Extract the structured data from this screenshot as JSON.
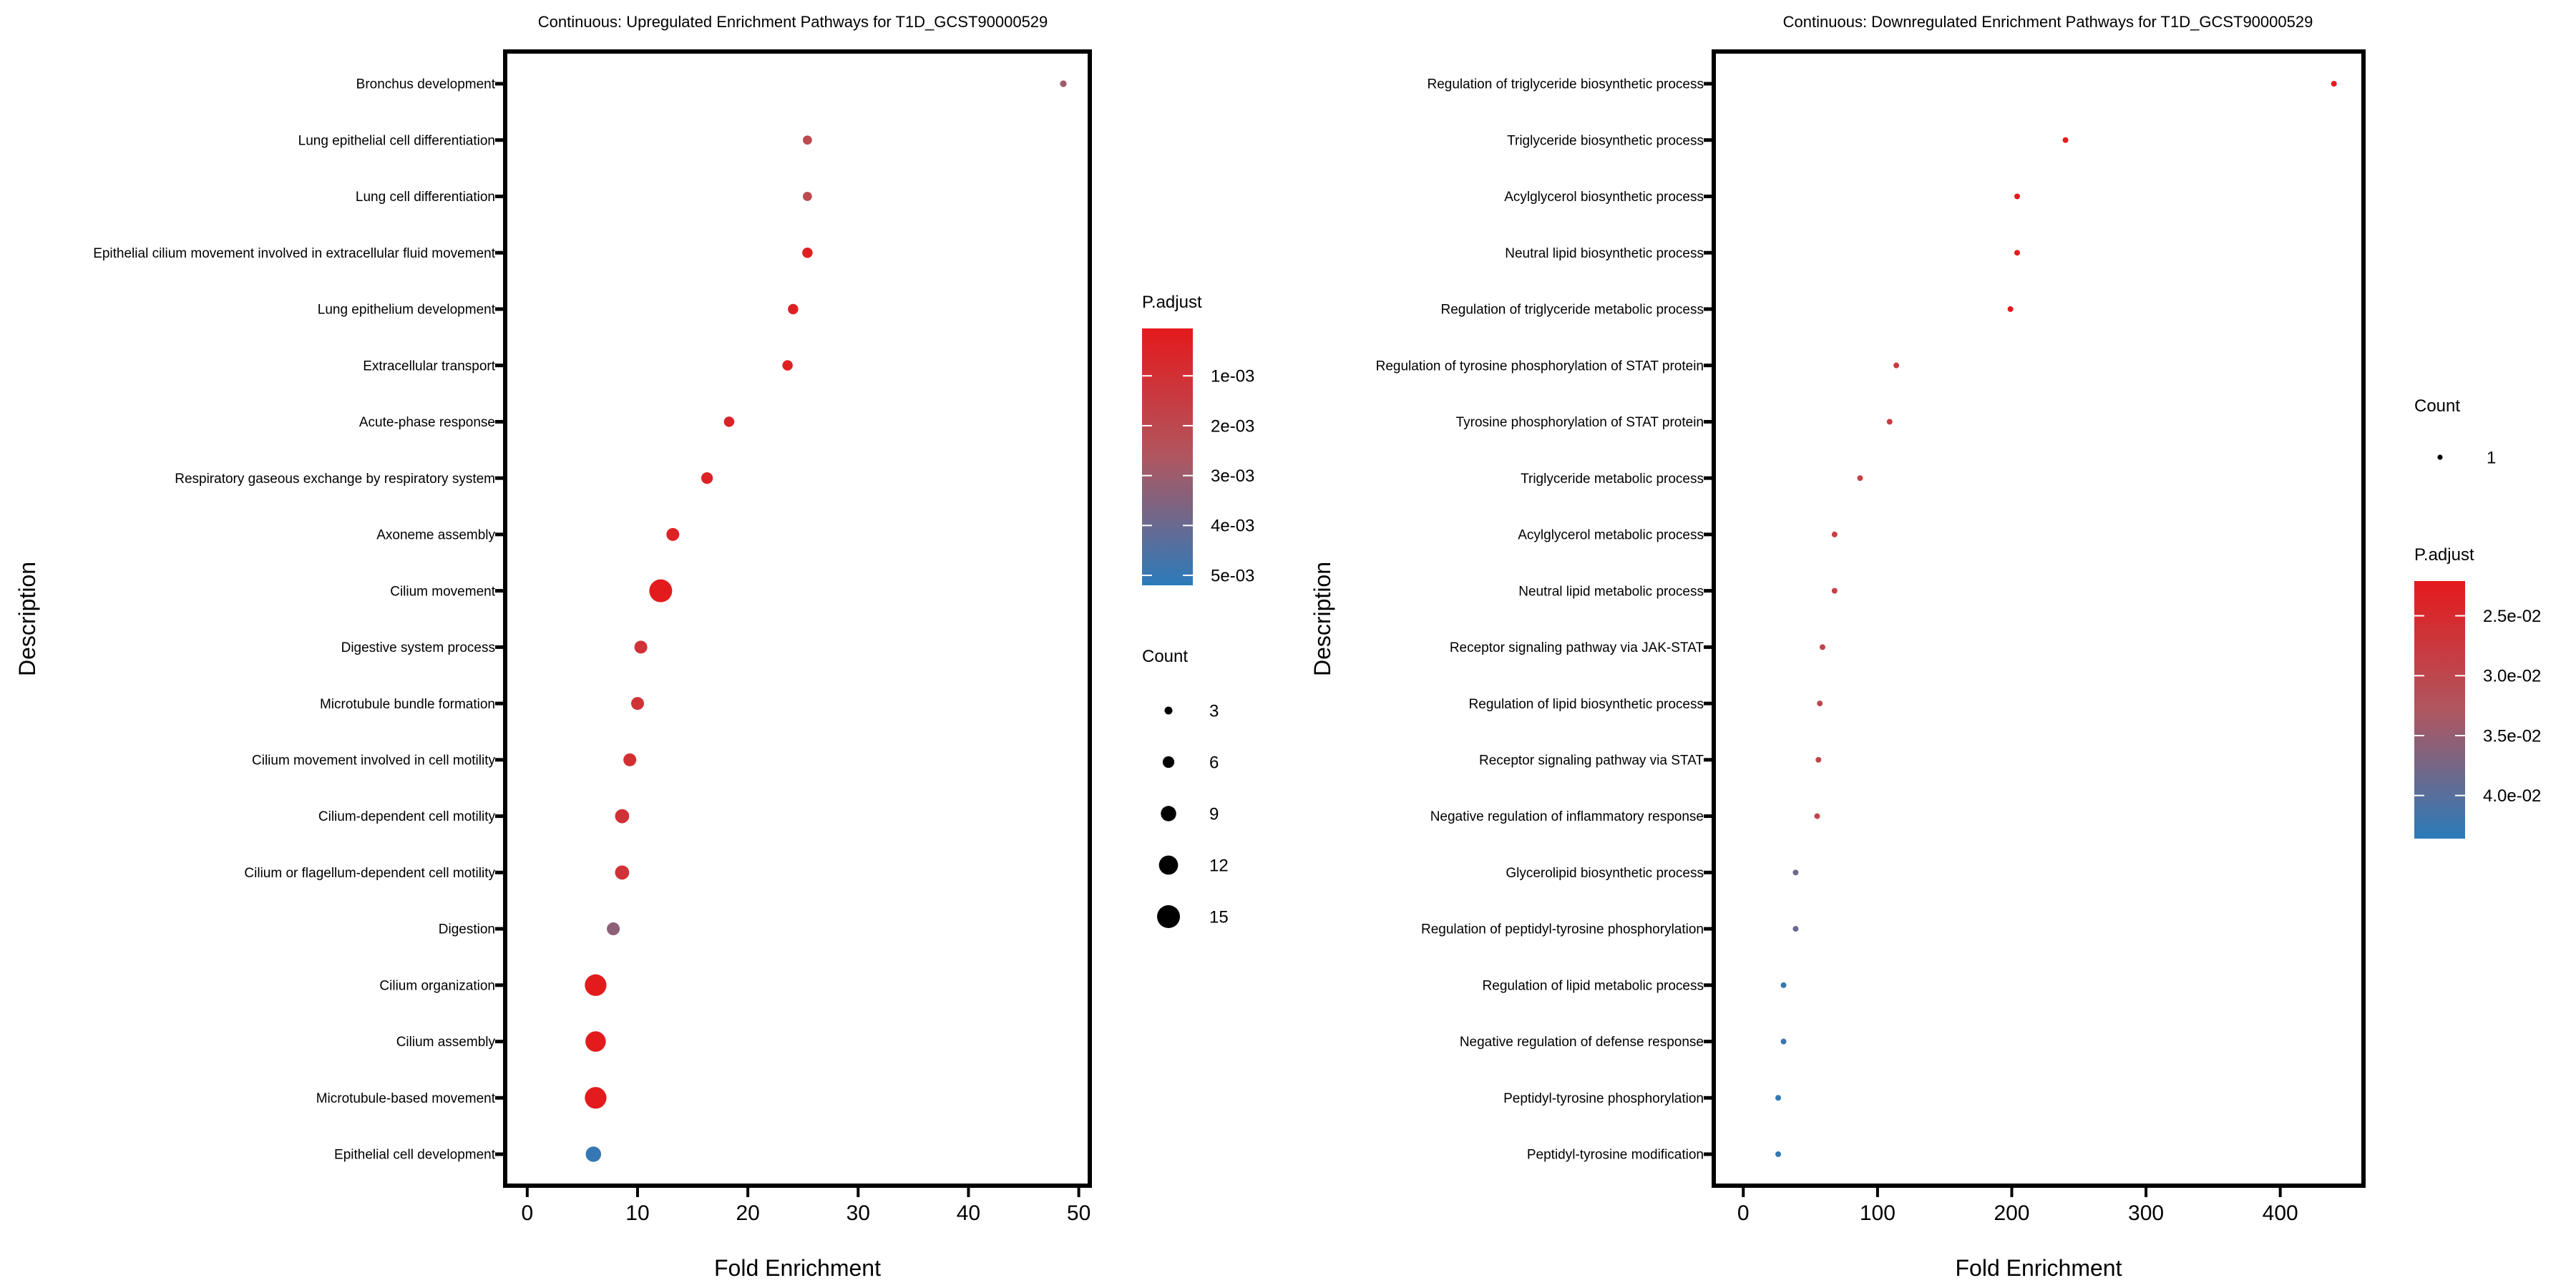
{
  "chart_data": [
    {
      "type": "scatter",
      "title": "Continuous: Upregulated Enrichment Pathways for T1D_GCST90000529",
      "xlabel": "Fold Enrichment",
      "ylabel": "Description",
      "xlim": [
        -2,
        51
      ],
      "xticks": [
        0,
        10,
        20,
        30,
        40,
        50
      ],
      "grid": false,
      "legend_placement": "right",
      "colors": {
        "low_p": "#E41A1C",
        "high_p": "#2B7BBA"
      },
      "color_legend": {
        "title": "P.adjust",
        "range": [
          5e-05,
          0.0052
        ],
        "ticks": [
          0.001,
          0.002,
          0.003,
          0.004,
          0.005
        ],
        "tick_labels": [
          "1e-03",
          "2e-03",
          "3e-03",
          "4e-03",
          "5e-03"
        ]
      },
      "size_legend": {
        "title": "Count",
        "values": [
          3,
          6,
          9,
          12,
          15
        ],
        "labels": [
          "3",
          "6",
          "9",
          "12",
          "15"
        ],
        "range": [
          3,
          15
        ]
      },
      "points": [
        {
          "description": "Bronchus development",
          "fold_enrichment": 48.6,
          "count": 2,
          "p_adjust": 0.003
        },
        {
          "description": "Lung epithelial cell differentiation",
          "fold_enrichment": 25.4,
          "count": 4,
          "p_adjust": 0.0021
        },
        {
          "description": "Lung cell differentiation",
          "fold_enrichment": 25.4,
          "count": 4,
          "p_adjust": 0.0021
        },
        {
          "description": "Epithelial cilium movement involved in extracellular fluid movement",
          "fold_enrichment": 25.4,
          "count": 5,
          "p_adjust": 0.0003
        },
        {
          "description": "Lung epithelium development",
          "fold_enrichment": 24.1,
          "count": 5,
          "p_adjust": 0.0003
        },
        {
          "description": "Extracellular transport",
          "fold_enrichment": 23.6,
          "count": 5,
          "p_adjust": 0.0003
        },
        {
          "description": "Acute-phase response",
          "fold_enrichment": 18.3,
          "count": 5,
          "p_adjust": 0.0005
        },
        {
          "description": "Respiratory gaseous exchange by respiratory system",
          "fold_enrichment": 16.3,
          "count": 6,
          "p_adjust": 0.0004
        },
        {
          "description": "Axoneme assembly",
          "fold_enrichment": 13.2,
          "count": 7,
          "p_adjust": 0.0004
        },
        {
          "description": "Cilium movement",
          "fold_enrichment": 12.1,
          "count": 15,
          "p_adjust": 0.0001
        },
        {
          "description": "Digestive system process",
          "fold_enrichment": 10.3,
          "count": 7,
          "p_adjust": 0.0011
        },
        {
          "description": "Microtubule bundle formation",
          "fold_enrichment": 10.0,
          "count": 7,
          "p_adjust": 0.0011
        },
        {
          "description": "Cilium movement involved in cell motility",
          "fold_enrichment": 9.3,
          "count": 7,
          "p_adjust": 0.0009
        },
        {
          "description": "Cilium-dependent cell motility",
          "fold_enrichment": 8.6,
          "count": 8,
          "p_adjust": 0.0011
        },
        {
          "description": "Cilium or flagellum-dependent cell motility",
          "fold_enrichment": 8.6,
          "count": 8,
          "p_adjust": 0.0011
        },
        {
          "description": "Digestion",
          "fold_enrichment": 7.8,
          "count": 7,
          "p_adjust": 0.0033
        },
        {
          "description": "Cilium organization",
          "fold_enrichment": 6.2,
          "count": 14,
          "p_adjust": 0.0001
        },
        {
          "description": "Cilium assembly",
          "fold_enrichment": 6.2,
          "count": 13,
          "p_adjust": 0.0001
        },
        {
          "description": "Microtubule-based movement",
          "fold_enrichment": 6.2,
          "count": 14,
          "p_adjust": 0.0001
        },
        {
          "description": "Epithelial cell development",
          "fold_enrichment": 6.0,
          "count": 9,
          "p_adjust": 0.005
        }
      ]
    },
    {
      "type": "scatter",
      "title": "Continuous: Downregulated Enrichment Pathways for T1D_GCST90000529",
      "xlabel": "Fold Enrichment",
      "ylabel": "Description",
      "xlim": [
        -22,
        462
      ],
      "xticks": [
        0,
        100,
        200,
        300,
        400
      ],
      "grid": false,
      "legend_placement": "right",
      "colors": {
        "low_p": "#E41A1C",
        "high_p": "#2B7BBA"
      },
      "color_legend": {
        "title": "P.adjust",
        "range": [
          0.0221,
          0.0436
        ],
        "ticks": [
          0.025,
          0.03,
          0.035,
          0.04
        ],
        "tick_labels": [
          "2.5e-02",
          "3.0e-02",
          "3.5e-02",
          "4.0e-02"
        ]
      },
      "size_legend": {
        "title": "Count",
        "values": [
          1
        ],
        "labels": [
          "1"
        ],
        "range": [
          1,
          1
        ]
      },
      "points": [
        {
          "description": "Regulation of triglyceride biosynthetic process",
          "fold_enrichment": 440,
          "count": 1,
          "p_adjust": 0.0222
        },
        {
          "description": "Triglyceride biosynthetic process",
          "fold_enrichment": 240,
          "count": 1,
          "p_adjust": 0.0222
        },
        {
          "description": "Acylglycerol biosynthetic process",
          "fold_enrichment": 204,
          "count": 1,
          "p_adjust": 0.0222
        },
        {
          "description": "Neutral lipid biosynthetic process",
          "fold_enrichment": 204,
          "count": 1,
          "p_adjust": 0.0222
        },
        {
          "description": "Regulation of triglyceride metabolic process",
          "fold_enrichment": 199,
          "count": 1,
          "p_adjust": 0.0222
        },
        {
          "description": "Regulation of tyrosine phosphorylation of STAT protein",
          "fold_enrichment": 114,
          "count": 1,
          "p_adjust": 0.028
        },
        {
          "description": "Tyrosine phosphorylation of STAT protein",
          "fold_enrichment": 109,
          "count": 1,
          "p_adjust": 0.028
        },
        {
          "description": "Triglyceride metabolic process",
          "fold_enrichment": 87,
          "count": 1,
          "p_adjust": 0.029
        },
        {
          "description": "Acylglycerol metabolic process",
          "fold_enrichment": 68,
          "count": 1,
          "p_adjust": 0.029
        },
        {
          "description": "Neutral lipid metabolic process",
          "fold_enrichment": 68,
          "count": 1,
          "p_adjust": 0.029
        },
        {
          "description": "Receptor signaling pathway via JAK-STAT",
          "fold_enrichment": 59,
          "count": 1,
          "p_adjust": 0.03
        },
        {
          "description": "Regulation of lipid biosynthetic process",
          "fold_enrichment": 57,
          "count": 1,
          "p_adjust": 0.03
        },
        {
          "description": "Receptor signaling pathway via STAT",
          "fold_enrichment": 56,
          "count": 1,
          "p_adjust": 0.03
        },
        {
          "description": "Negative regulation of inflammatory response",
          "fold_enrichment": 55,
          "count": 1,
          "p_adjust": 0.03
        },
        {
          "description": "Glycerolipid biosynthetic process",
          "fold_enrichment": 39,
          "count": 1,
          "p_adjust": 0.038
        },
        {
          "description": "Regulation of peptidyl-tyrosine phosphorylation",
          "fold_enrichment": 39,
          "count": 1,
          "p_adjust": 0.0385
        },
        {
          "description": "Regulation of lipid metabolic process",
          "fold_enrichment": 30,
          "count": 1,
          "p_adjust": 0.0425
        },
        {
          "description": "Negative regulation of defense response",
          "fold_enrichment": 30,
          "count": 1,
          "p_adjust": 0.0425
        },
        {
          "description": "Peptidyl-tyrosine phosphorylation",
          "fold_enrichment": 26,
          "count": 1,
          "p_adjust": 0.043
        },
        {
          "description": "Peptidyl-tyrosine modification",
          "fold_enrichment": 26,
          "count": 1,
          "p_adjust": 0.043
        }
      ]
    }
  ]
}
